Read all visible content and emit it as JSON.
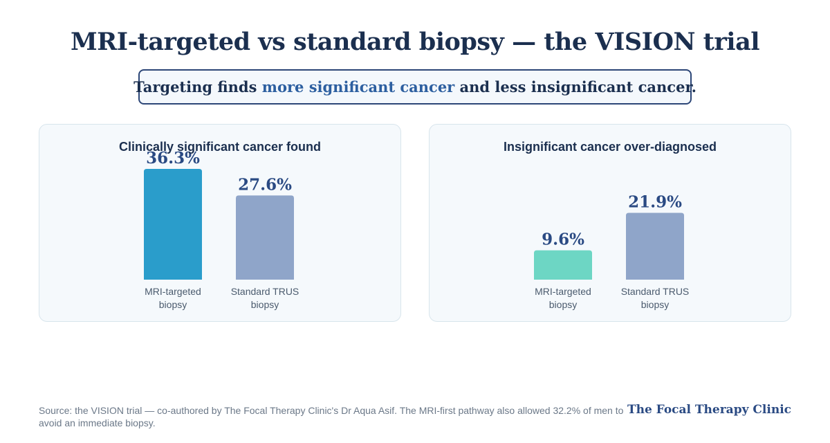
{
  "title": "MRI-targeted vs standard biopsy — the VISION trial",
  "callout": {
    "before": "Targeting finds ",
    "highlight": "more significant cancer",
    "after": " and less insignificant cancer."
  },
  "chart_data": [
    {
      "type": "bar",
      "title": "Clinically significant cancer found",
      "categories": [
        [
          "MRI-targeted",
          "biopsy"
        ],
        [
          "Standard TRUS",
          "biopsy"
        ]
      ],
      "values": [
        36.3,
        27.6
      ],
      "value_labels": [
        "36.3%",
        "27.6%"
      ],
      "colors": [
        "#2a9dcb",
        "#8fa5c9"
      ],
      "ylim": [
        0,
        36.3
      ]
    },
    {
      "type": "bar",
      "title": "Insignificant cancer over-diagnosed",
      "categories": [
        [
          "MRI-targeted",
          "biopsy"
        ],
        [
          "Standard TRUS",
          "biopsy"
        ]
      ],
      "values": [
        9.6,
        21.9
      ],
      "value_labels": [
        "9.6%",
        "21.9%"
      ],
      "colors": [
        "#6dd6c4",
        "#8fa5c9"
      ],
      "ylim": [
        0,
        36.3
      ]
    }
  ],
  "footer": {
    "source": "Source: the VISION trial — co-authored by The Focal Therapy Clinic's Dr Aqua Asif. The MRI-first pathway also allowed 32.2% of men to avoid an immediate biopsy.",
    "brand": "The Focal Therapy Clinic"
  }
}
